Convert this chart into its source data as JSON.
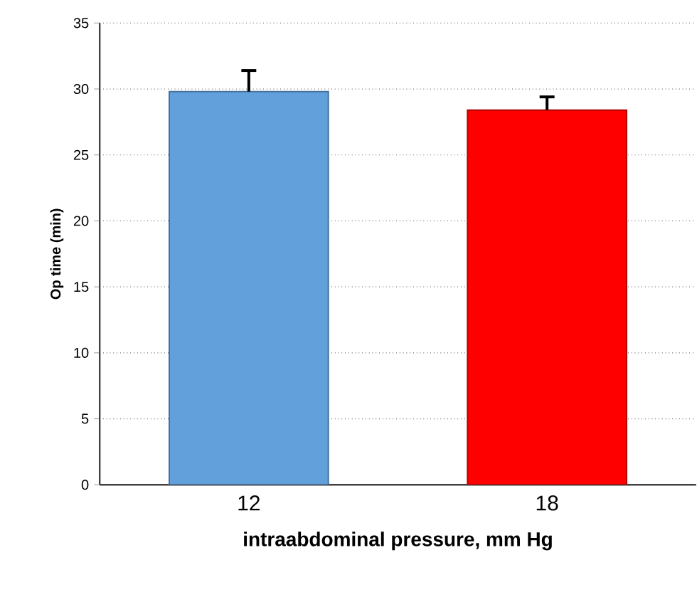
{
  "chart_data": {
    "type": "bar",
    "categories": [
      "12",
      "18"
    ],
    "xlabel": "intraabdominal pressure, mm Hg",
    "ylabel": "Op time (min)",
    "values": [
      29.8,
      28.4
    ],
    "colors": [
      "#62a0dc",
      "#ff0000"
    ],
    "errors": [
      [
        29.8,
        31.4
      ],
      [
        28.4,
        29.4
      ]
    ],
    "ylim": [
      0,
      35
    ],
    "yticks": [
      0,
      5,
      10,
      15,
      20,
      25,
      30,
      35
    ],
    "grid": "y"
  }
}
